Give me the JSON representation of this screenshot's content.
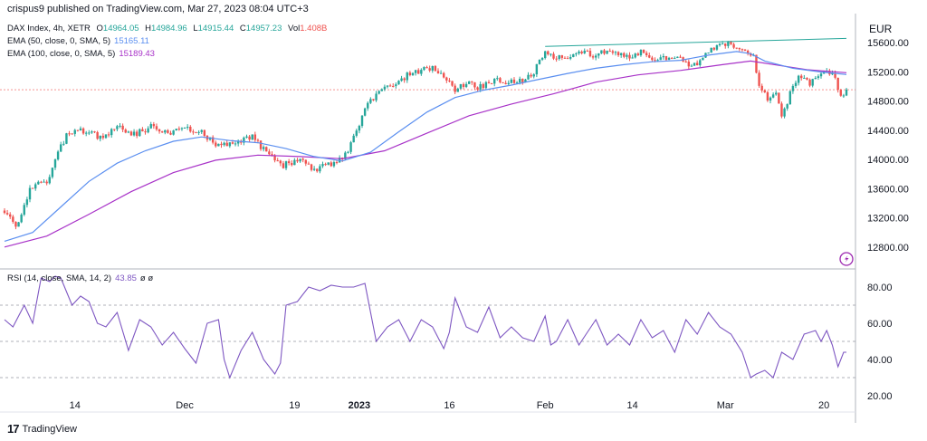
{
  "header": {
    "publisher": "crispus9 published on TradingView.com, Mar 27, 2023 08:04 UTC+3"
  },
  "legend": {
    "symbol": "DAX Index, 4h, XETR",
    "o_label": "O",
    "o_value": "14964.05",
    "h_label": "H",
    "h_value": "14984.96",
    "l_label": "L",
    "l_value": "14915.44",
    "c_label": "C",
    "c_value": "14957.23",
    "vol_label": "Vol",
    "vol_value": "1.408B",
    "ema50_label": "EMA (50, close, 0, SMA, 5)",
    "ema50_value": "15165.11",
    "ema100_label": "EMA (100, close, 0, SMA, 5)",
    "ema100_value": "15189.43",
    "rsi_label": "RSI (14, close, SMA, 14, 2)",
    "rsi_value": "43.85",
    "rsi_extra": "ø ø"
  },
  "footer": {
    "brand": "TradingView",
    "logo": "17"
  },
  "colors": {
    "up": "#26a69a",
    "down": "#ef5350",
    "ema50": "#5b8ff0",
    "ema100": "#a832c8",
    "rsi": "#7e57c2",
    "trend": "#26a69a",
    "text": "#131722",
    "grid": "#e0e3eb"
  },
  "chart_data": [
    {
      "type": "candlestick",
      "currency": "EUR",
      "ylim": [
        12500,
        16000
      ],
      "y_ticks": [
        "15600.00",
        "15200.00",
        "14800.00",
        "14400.00",
        "14000.00",
        "13600.00",
        "13200.00",
        "12800.00"
      ],
      "x_ticks": [
        "14",
        "Dec",
        "19",
        "2023",
        "16",
        "Feb",
        "14",
        "Mar",
        "20"
      ],
      "reference_line": 14957,
      "trendline": {
        "from": 15550,
        "to": 15660
      },
      "close_path": [
        [
          0,
          13300
        ],
        [
          4,
          13080
        ],
        [
          9,
          13600
        ],
        [
          15,
          13700
        ],
        [
          22,
          14350
        ],
        [
          28,
          14400
        ],
        [
          34,
          14300
        ],
        [
          40,
          14450
        ],
        [
          46,
          14350
        ],
        [
          52,
          14450
        ],
        [
          58,
          14350
        ],
        [
          64,
          14420
        ],
        [
          70,
          14380
        ],
        [
          76,
          14180
        ],
        [
          82,
          14250
        ],
        [
          88,
          14320
        ],
        [
          94,
          14050
        ],
        [
          99,
          13920
        ],
        [
          104,
          14000
        ],
        [
          110,
          13850
        ],
        [
          116,
          13950
        ],
        [
          121,
          14050
        ],
        [
          124,
          14300
        ],
        [
          128,
          14700
        ],
        [
          133,
          14950
        ],
        [
          139,
          15050
        ],
        [
          145,
          15200
        ],
        [
          152,
          15250
        ],
        [
          157,
          15120
        ],
        [
          160,
          14950
        ],
        [
          164,
          15050
        ],
        [
          168,
          14980
        ],
        [
          174,
          15100
        ],
        [
          181,
          15050
        ],
        [
          187,
          15150
        ],
        [
          192,
          15450
        ],
        [
          198,
          15380
        ],
        [
          204,
          15500
        ],
        [
          210,
          15420
        ],
        [
          214,
          15500
        ],
        [
          220,
          15400
        ],
        [
          226,
          15480
        ],
        [
          232,
          15350
        ],
        [
          238,
          15420
        ],
        [
          244,
          15250
        ],
        [
          250,
          15500
        ],
        [
          256,
          15600
        ],
        [
          262,
          15550
        ],
        [
          266,
          15400
        ],
        [
          268,
          15050
        ],
        [
          271,
          14850
        ],
        [
          274,
          14950
        ],
        [
          276,
          14600
        ],
        [
          279,
          14900
        ],
        [
          282,
          15150
        ],
        [
          286,
          15050
        ],
        [
          290,
          15200
        ],
        [
          294,
          15180
        ],
        [
          297,
          14880
        ],
        [
          299,
          14950
        ]
      ],
      "ema50": [
        [
          0,
          12880
        ],
        [
          10,
          13000
        ],
        [
          20,
          13350
        ],
        [
          30,
          13700
        ],
        [
          40,
          13950
        ],
        [
          50,
          14120
        ],
        [
          60,
          14250
        ],
        [
          70,
          14310
        ],
        [
          80,
          14260
        ],
        [
          90,
          14230
        ],
        [
          100,
          14150
        ],
        [
          110,
          14040
        ],
        [
          120,
          13980
        ],
        [
          130,
          14100
        ],
        [
          140,
          14380
        ],
        [
          150,
          14650
        ],
        [
          160,
          14850
        ],
        [
          170,
          14950
        ],
        [
          180,
          15020
        ],
        [
          190,
          15100
        ],
        [
          200,
          15180
        ],
        [
          210,
          15250
        ],
        [
          220,
          15300
        ],
        [
          230,
          15340
        ],
        [
          240,
          15360
        ],
        [
          250,
          15430
        ],
        [
          260,
          15480
        ],
        [
          265,
          15450
        ],
        [
          270,
          15350
        ],
        [
          280,
          15250
        ],
        [
          290,
          15200
        ],
        [
          299,
          15165
        ]
      ],
      "ema100": [
        [
          0,
          12800
        ],
        [
          15,
          12950
        ],
        [
          30,
          13250
        ],
        [
          45,
          13560
        ],
        [
          60,
          13820
        ],
        [
          75,
          13990
        ],
        [
          90,
          14060
        ],
        [
          105,
          14040
        ],
        [
          120,
          14010
        ],
        [
          135,
          14120
        ],
        [
          150,
          14360
        ],
        [
          165,
          14600
        ],
        [
          180,
          14760
        ],
        [
          195,
          14900
        ],
        [
          210,
          15060
        ],
        [
          225,
          15160
        ],
        [
          240,
          15220
        ],
        [
          255,
          15300
        ],
        [
          265,
          15350
        ],
        [
          275,
          15290
        ],
        [
          285,
          15230
        ],
        [
          299,
          15189
        ]
      ]
    },
    {
      "type": "line",
      "title": "RSI (14, close, SMA, 14, 2)",
      "ylim": [
        20,
        90
      ],
      "y_ticks": [
        "80.00",
        "60.00",
        "40.00",
        "20.00"
      ],
      "bands": [
        30,
        50,
        70
      ],
      "x": [
        0,
        3,
        7,
        10,
        13,
        16,
        18,
        20,
        24,
        27,
        30,
        33,
        36,
        40,
        44,
        48,
        52,
        56,
        60,
        64,
        68,
        72,
        76,
        78,
        80,
        84,
        88,
        92,
        96,
        98,
        100,
        104,
        108,
        112,
        116,
        120,
        124,
        128,
        132,
        136,
        140,
        144,
        148,
        152,
        156,
        158,
        160,
        164,
        168,
        172,
        176,
        180,
        184,
        188,
        192,
        194,
        196,
        200,
        204,
        207,
        210,
        214,
        218,
        222,
        226,
        230,
        234,
        238,
        242,
        246,
        250,
        254,
        258,
        262,
        265,
        267,
        270,
        273,
        276,
        280,
        284,
        288,
        290,
        292,
        294,
        296,
        298,
        299
      ],
      "values": [
        62,
        58,
        70,
        60,
        85,
        83,
        86,
        85,
        70,
        75,
        72,
        60,
        58,
        66,
        45,
        62,
        58,
        48,
        55,
        46,
        38,
        60,
        62,
        40,
        30,
        45,
        55,
        40,
        32,
        38,
        70,
        72,
        80,
        78,
        81,
        80,
        80,
        82,
        50,
        58,
        62,
        50,
        62,
        58,
        46,
        55,
        74,
        58,
        55,
        69,
        52,
        58,
        52,
        50,
        64,
        48,
        50,
        62,
        48,
        55,
        62,
        48,
        54,
        48,
        62,
        52,
        56,
        44,
        62,
        54,
        66,
        58,
        54,
        44,
        30,
        32,
        34,
        30,
        44,
        40,
        54,
        56,
        50,
        56,
        48,
        36,
        44,
        44
      ]
    }
  ]
}
